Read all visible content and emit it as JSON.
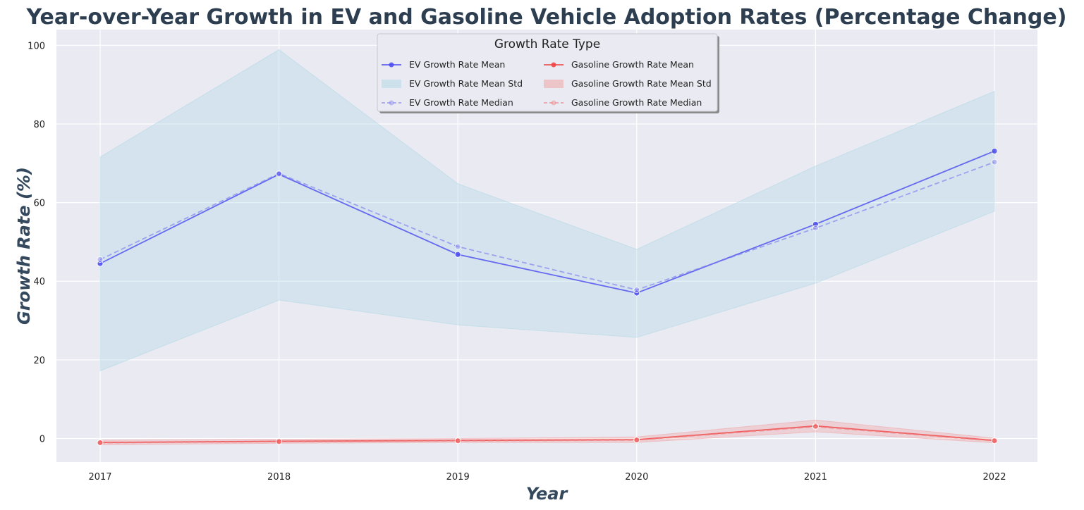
{
  "chart_data": {
    "type": "line",
    "title": "Year-over-Year Growth in EV and Gasoline Vehicle Adoption Rates (Percentage Change)",
    "xlabel": "Year",
    "ylabel": "Growth Rate (%)",
    "x": [
      "2017",
      "2018",
      "2019",
      "2020",
      "2021",
      "2022"
    ],
    "ylim": [
      -6,
      104
    ],
    "yticks": [
      0,
      20,
      40,
      60,
      80,
      100
    ],
    "grid": true,
    "legend": {
      "title": "Growth Rate Type",
      "placement": "top-center",
      "columns": 2,
      "entries": [
        {
          "label": "EV Growth Rate Mean",
          "kind": "line",
          "color": "#4a4af0"
        },
        {
          "label": "EV Growth Rate Mean Std",
          "kind": "band",
          "color": "#add8e6"
        },
        {
          "label": "EV Growth Rate Median",
          "kind": "dashed",
          "color": "#8080f0"
        },
        {
          "label": "Gasoline Growth Rate Mean",
          "kind": "line",
          "color": "#f04040"
        },
        {
          "label": "Gasoline Growth Rate Mean Std",
          "kind": "band",
          "color": "#f0a0a0"
        },
        {
          "label": "Gasoline Growth Rate Median",
          "kind": "dashed",
          "color": "#f08080"
        }
      ]
    },
    "series": [
      {
        "name": "EV Growth Rate Mean",
        "style": "solid",
        "color": "#4a4af0",
        "values": [
          44.5,
          67.2,
          46.8,
          37.0,
          54.5,
          73.1
        ]
      },
      {
        "name": "EV Growth Rate Median",
        "style": "dashed",
        "color": "#8080f0",
        "values": [
          45.5,
          67.4,
          48.8,
          37.8,
          53.5,
          70.3
        ]
      },
      {
        "name": "Gasoline Growth Rate Mean",
        "style": "solid",
        "color": "#f04040",
        "values": [
          -1.0,
          -0.7,
          -0.5,
          -0.3,
          3.2,
          -0.5
        ]
      },
      {
        "name": "Gasoline Growth Rate Median",
        "style": "dashed",
        "color": "#f08080",
        "values": [
          -1.1,
          -0.8,
          -0.6,
          -0.4,
          3.0,
          -0.6
        ]
      }
    ],
    "bands": [
      {
        "name": "EV Growth Rate Mean Std",
        "color": "#add8e6",
        "lower": [
          17.2,
          35.2,
          28.9,
          25.7,
          39.5,
          57.8
        ],
        "upper": [
          71.6,
          98.9,
          64.8,
          48.1,
          69.3,
          88.3
        ]
      },
      {
        "name": "Gasoline Growth Rate Mean Std",
        "color": "#f0a0a0",
        "lower": [
          -1.6,
          -1.2,
          -1.0,
          -1.0,
          1.7,
          -1.1
        ],
        "upper": [
          -0.4,
          -0.2,
          0.0,
          0.4,
          4.7,
          0.1
        ]
      }
    ]
  }
}
